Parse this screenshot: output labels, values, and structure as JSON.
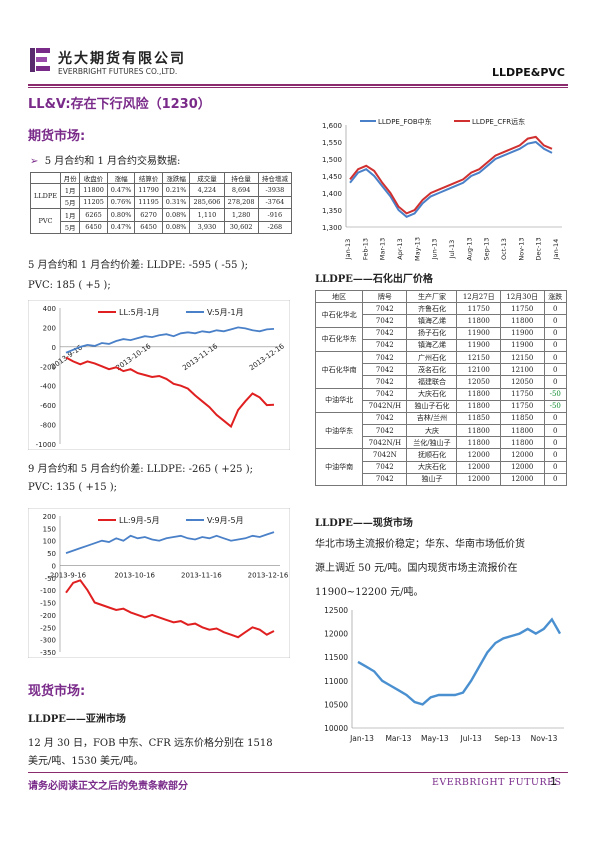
{
  "header": {
    "logo_cn": "光大期货有限公司",
    "logo_en": "EVERBRIGHT FUTURES CO.,LTD.",
    "doc_tag": "LLDPE&PVC"
  },
  "title": "LL&V:存在下行风险（1230）",
  "futures": {
    "heading": "期货市场:",
    "bullet": "5 月合约和 1 月合约交易数据:",
    "table": {
      "headers": [
        "",
        "月份",
        "收盘价",
        "涨幅",
        "结算价",
        "涨跌幅",
        "成交量",
        "持仓量",
        "持仓增减"
      ],
      "rows": [
        [
          "LLDPE",
          "1月",
          "11800",
          "0.47%",
          "11790",
          "0.21%",
          "4,224",
          "8,694",
          "-3938"
        ],
        [
          "",
          "5月",
          "11205",
          "0.76%",
          "11195",
          "0.31%",
          "285,606",
          "278,208",
          "-3764"
        ],
        [
          "PVC",
          "1月",
          "6265",
          "0.80%",
          "6270",
          "0.08%",
          "1,110",
          "1,280",
          "-916"
        ],
        [
          "",
          "5月",
          "6450",
          "0.47%",
          "6450",
          "0.08%",
          "3,930",
          "30,602",
          "-268"
        ]
      ]
    },
    "spread1_line1": "5 月合约和 1 月合约价差: LLDPE: -595 ( -55 );",
    "spread1_line2": "PVC:  185 ( +5 );",
    "spread2_line1": "9 月合约和 5 月合约价差: LLDPE: -265 ( +25 );",
    "spread2_line2": "PVC:  135 ( +15 );"
  },
  "spot": {
    "heading": "现货市场:",
    "sub1": "LLDPE——亚洲市场",
    "text1_line1": "12 月 30 日，FOB 中东、CFR 远东价格分别在 1518",
    "text1_line2": "美元/吨、1530 美元/吨。",
    "sub2": "LLDPE——石化出厂价格",
    "price_table": {
      "headers": [
        "地区",
        "牌号",
        "生产厂家",
        "12月27日",
        "12月30日",
        "涨跌"
      ],
      "groups": [
        {
          "region": "中石化华北",
          "rows": [
            [
              "7042",
              "齐鲁石化",
              "11750",
              "11750",
              "0"
            ],
            [
              "7042",
              "镇海乙烯",
              "11800",
              "11800",
              "0"
            ]
          ]
        },
        {
          "region": "中石化华东",
          "rows": [
            [
              "7042",
              "扬子石化",
              "11900",
              "11900",
              "0"
            ],
            [
              "7042",
              "镇海乙烯",
              "11900",
              "11900",
              "0"
            ]
          ]
        },
        {
          "region": "中石化华南",
          "rows": [
            [
              "7042",
              "广州石化",
              "12150",
              "12150",
              "0"
            ],
            [
              "7042",
              "茂名石化",
              "12100",
              "12100",
              "0"
            ],
            [
              "7042",
              "福建联合",
              "12050",
              "12050",
              "0"
            ]
          ]
        },
        {
          "region": "中油华北",
          "rows": [
            [
              "7042",
              "大庆石化",
              "11800",
              "11750",
              "-50"
            ],
            [
              "7042N/H",
              "独山子石化",
              "11800",
              "11750",
              "-50"
            ]
          ]
        },
        {
          "region": "中油华东",
          "rows": [
            [
              "7042",
              "吉林/兰州",
              "11850",
              "11850",
              "0"
            ],
            [
              "7042",
              "大庆",
              "11800",
              "11800",
              "0"
            ],
            [
              "7042N/H",
              "兰化/独山子",
              "11800",
              "11800",
              "0"
            ]
          ]
        },
        {
          "region": "中油华南",
          "rows": [
            [
              "7042N",
              "抚顺石化",
              "12000",
              "12000",
              "0"
            ],
            [
              "7042",
              "大庆石化",
              "12000",
              "12000",
              "0"
            ],
            [
              "7042",
              "独山子",
              "12000",
              "12000",
              "0"
            ]
          ]
        }
      ]
    },
    "sub3": "LLDPE——现货市场",
    "text3_line1": "华北市场主流报价稳定；华东、华南市场低价货",
    "text3_line2": "源上调近 50 元/吨。国内现货市场主流报价在",
    "text3_line3": "11900~12200 元/吨。"
  },
  "footer": {
    "disclaimer": "请务必阅读正文之后的免责条款部分",
    "brand": "EVERBRIGHT FUTURES",
    "page": "1"
  },
  "colors": {
    "brand": "#7a2b8a",
    "lldpe": "#e02020",
    "pvc": "#4a80c8"
  },
  "chart_data": [
    {
      "type": "line",
      "series": [
        {
          "name": "LL:5月-1月"
        },
        {
          "name": "V:5月-1月"
        }
      ],
      "x_ticks": [
        "2013-9-16",
        "2013-10-16",
        "2013-11-16",
        "2013-12-16"
      ],
      "ylim": [
        -1000,
        400
      ],
      "y_ticks": [
        "400",
        "200",
        "0",
        "-200",
        "-400",
        "-600",
        "-800",
        "-1000"
      ],
      "ll": [
        -110,
        -150,
        -180,
        -150,
        -170,
        -200,
        -230,
        -210,
        -250,
        -230,
        -270,
        -290,
        -310,
        -300,
        -330,
        -380,
        -400,
        -430,
        -500,
        -560,
        -620,
        -700,
        -760,
        -820,
        -650,
        -560,
        -480,
        -520,
        -600,
        -595
      ],
      "v": [
        -60,
        -30,
        0,
        20,
        10,
        40,
        30,
        60,
        80,
        70,
        90,
        110,
        100,
        120,
        130,
        110,
        140,
        150,
        140,
        160,
        150,
        170,
        160,
        180,
        200,
        190,
        170,
        160,
        180,
        185
      ]
    },
    {
      "type": "line",
      "series": [
        {
          "name": "LL:9月-5月"
        },
        {
          "name": "V:9月-5月"
        }
      ],
      "x_ticks": [
        "2013-9-16",
        "2013-10-16",
        "2013-11-16",
        "2013-12-16"
      ],
      "ylim": [
        -350,
        200
      ],
      "y_ticks": [
        "200",
        "150",
        "100",
        "50",
        "0",
        "-50",
        "-100",
        "-150",
        "-200",
        "-250",
        "-300",
        "-350"
      ],
      "ll": [
        -110,
        -70,
        -60,
        -100,
        -150,
        -160,
        -170,
        -180,
        -175,
        -190,
        -200,
        -210,
        -200,
        -210,
        -220,
        -230,
        -225,
        -240,
        -235,
        -250,
        -260,
        -255,
        -270,
        -280,
        -290,
        -270,
        -250,
        -260,
        -280,
        -265
      ],
      "v": [
        50,
        60,
        70,
        80,
        90,
        100,
        95,
        110,
        100,
        120,
        110,
        115,
        105,
        100,
        110,
        115,
        120,
        110,
        105,
        115,
        110,
        120,
        110,
        100,
        105,
        110,
        120,
        115,
        125,
        135
      ]
    },
    {
      "type": "line",
      "series": [
        {
          "name": "LLDPE_FOB中东"
        },
        {
          "name": "LLDPE_CFR远东"
        }
      ],
      "x_ticks": [
        "Jan-13",
        "Feb-13",
        "Mar-13",
        "Apr-13",
        "May-13",
        "Jun-13",
        "Jul-13",
        "Aug-13",
        "Sep-13",
        "Oct-13",
        "Nov-13",
        "Dec-13",
        "Jan-14"
      ],
      "ylim": [
        1300,
        1600
      ],
      "y_ticks": [
        "1,600",
        "1,550",
        "1,500",
        "1,450",
        "1,400",
        "1,350",
        "1,300"
      ],
      "fob": [
        1430,
        1460,
        1470,
        1450,
        1420,
        1390,
        1350,
        1330,
        1340,
        1370,
        1390,
        1400,
        1410,
        1420,
        1430,
        1450,
        1460,
        1480,
        1500,
        1510,
        1520,
        1530,
        1545,
        1550,
        1530,
        1518
      ],
      "cfr": [
        1440,
        1470,
        1480,
        1465,
        1430,
        1400,
        1360,
        1340,
        1350,
        1380,
        1400,
        1410,
        1420,
        1430,
        1440,
        1460,
        1470,
        1490,
        1510,
        1520,
        1530,
        1540,
        1560,
        1565,
        1540,
        1530
      ]
    },
    {
      "type": "line",
      "x_ticks": [
        "Jan-13",
        "Mar-13",
        "May-13",
        "Jul-13",
        "Sep-13",
        "Nov-13"
      ],
      "ylim": [
        10000,
        12500
      ],
      "y_ticks": [
        "12500",
        "12000",
        "11500",
        "11000",
        "10500",
        "10000"
      ],
      "values": [
        11400,
        11300,
        11200,
        11000,
        10900,
        10800,
        10700,
        10550,
        10500,
        10650,
        10700,
        10700,
        10700,
        10750,
        11000,
        11300,
        11600,
        11800,
        11900,
        11950,
        12000,
        12100,
        12000,
        12100,
        12300,
        12000
      ]
    }
  ]
}
